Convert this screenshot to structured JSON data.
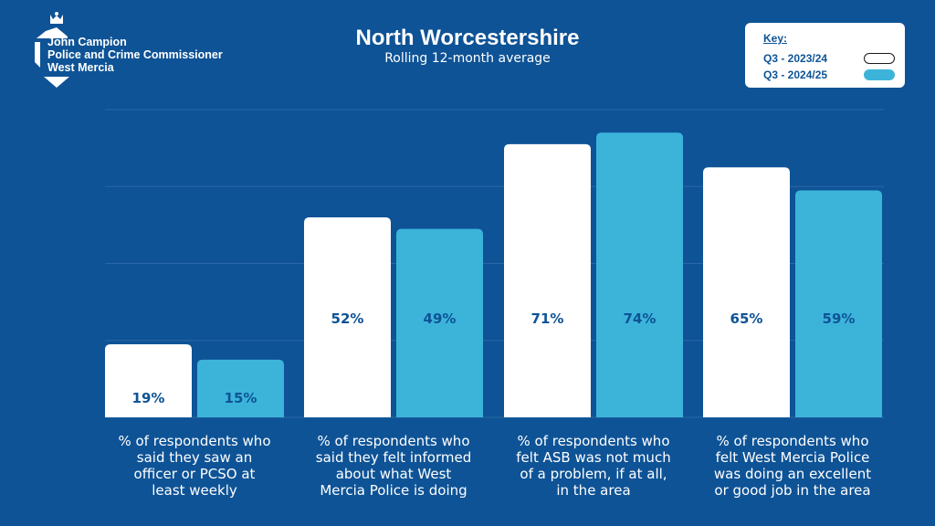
{
  "logo": {
    "lines": [
      "John Campion",
      "Police and Crime Commissioner",
      "West Mercia"
    ]
  },
  "legend": {
    "title": "Key:"
  },
  "colors": {
    "background": "#0e5396",
    "series_2023": "#ffffff",
    "series_2024": "#3cb4da",
    "value_text": "#0e5396",
    "gridline": "#2a68a6"
  },
  "chart_data": {
    "type": "bar",
    "title": "North Worcestershire",
    "subtitle": "Rolling 12-month average",
    "categories": [
      "% of respondents who said they saw an officer or PCSO at least weekly",
      "% of respondents who said they felt informed about what West Mercia Police is doing",
      "% of respondents who felt ASB was not much of a problem, if at all, in the area",
      "% of respondents who felt West Mercia Police was doing an excellent or good job in the area"
    ],
    "category_lines": [
      [
        "% of respondents who",
        "said they saw an",
        "officer or PCSO at",
        "least weekly"
      ],
      [
        "% of respondents who",
        "said they felt informed",
        "about what West",
        "Mercia Police is doing"
      ],
      [
        "% of respondents who",
        "felt ASB was not much",
        "of a problem, if at all,",
        "in the area"
      ],
      [
        "% of respondents who",
        "felt West Mercia Police",
        "was doing an excellent",
        "or good job in the area"
      ]
    ],
    "series": [
      {
        "name": "Q3 - 2023/24",
        "values": [
          19,
          52,
          71,
          65
        ],
        "labels": [
          "19%",
          "52%",
          "71%",
          "65%"
        ]
      },
      {
        "name": "Q3 - 2024/25",
        "values": [
          15,
          49,
          74,
          59
        ],
        "labels": [
          "15%",
          "49%",
          "74%",
          "59%"
        ]
      }
    ],
    "ylim": [
      0,
      80
    ],
    "grid": true,
    "legend_position": "top-right"
  }
}
